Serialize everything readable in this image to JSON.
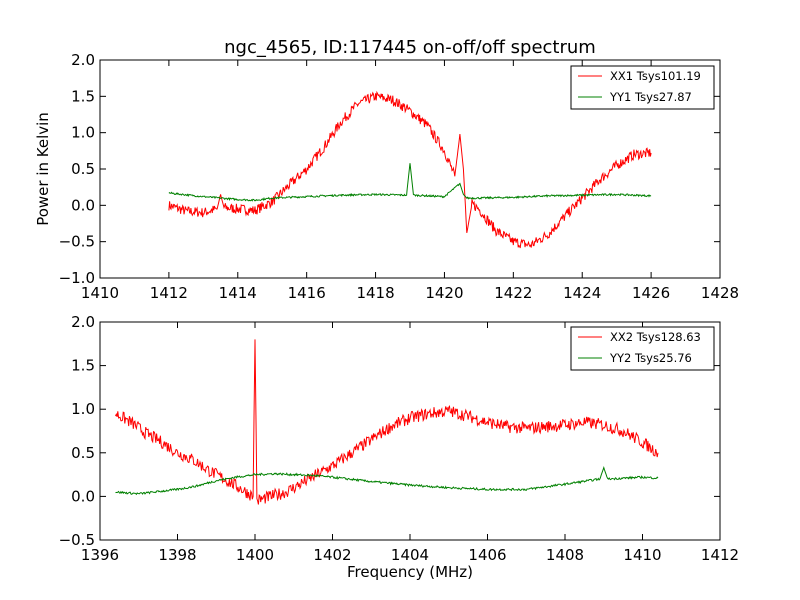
{
  "title": "ngc_4565, ID:117445 on-off/off spectrum",
  "chart_data": [
    {
      "type": "line",
      "ylabel": "Power in Kelvin",
      "xlabel": "",
      "xlim": [
        1410,
        1428
      ],
      "ylim": [
        -1.0,
        2.0
      ],
      "xticks": [
        1410,
        1412,
        1414,
        1416,
        1418,
        1420,
        1422,
        1424,
        1426,
        1428
      ],
      "yticks": [
        -1.0,
        -0.5,
        0.0,
        0.5,
        1.0,
        1.5,
        2.0
      ],
      "xtick_labels": [
        "1410",
        "1412",
        "1414",
        "1416",
        "1418",
        "1420",
        "1422",
        "1424",
        "1426",
        "1428"
      ],
      "ytick_labels": [
        "−1.0",
        "−0.5",
        "0.0",
        "0.5",
        "1.0",
        "1.5",
        "2.0"
      ],
      "grid": false,
      "legend_position": "top-right",
      "series": [
        {
          "name": "XX1 Tsys101.19",
          "color": "#ff0000",
          "x": [
            1412.0,
            1412.5,
            1413.0,
            1413.4,
            1413.5,
            1413.6,
            1414.0,
            1414.5,
            1415.0,
            1415.5,
            1416.0,
            1416.5,
            1417.0,
            1417.5,
            1418.0,
            1418.5,
            1419.0,
            1419.5,
            1420.0,
            1420.3,
            1420.45,
            1420.55,
            1420.65,
            1420.8,
            1421.0,
            1421.5,
            1422.0,
            1422.5,
            1423.0,
            1423.5,
            1424.0,
            1424.5,
            1425.0,
            1425.5,
            1426.0
          ],
          "y": [
            0.0,
            -0.08,
            -0.1,
            -0.05,
            0.15,
            -0.03,
            -0.05,
            -0.07,
            0.05,
            0.28,
            0.5,
            0.8,
            1.15,
            1.4,
            1.5,
            1.45,
            1.3,
            1.1,
            0.75,
            0.4,
            0.98,
            0.5,
            -0.38,
            0.02,
            -0.05,
            -0.35,
            -0.5,
            -0.55,
            -0.4,
            -0.15,
            0.1,
            0.35,
            0.55,
            0.7,
            0.72
          ]
        },
        {
          "name": "YY1 Tsys27.87",
          "color": "#008000",
          "x": [
            1412.0,
            1413.0,
            1414.0,
            1414.5,
            1415.0,
            1416.0,
            1417.0,
            1418.0,
            1418.9,
            1419.0,
            1419.1,
            1420.0,
            1420.45,
            1420.55,
            1420.65,
            1421.0,
            1422.0,
            1423.0,
            1424.0,
            1425.0,
            1426.0
          ],
          "y": [
            0.17,
            0.12,
            0.08,
            0.07,
            0.1,
            0.12,
            0.14,
            0.15,
            0.14,
            0.58,
            0.14,
            0.12,
            0.3,
            0.15,
            0.1,
            0.1,
            0.11,
            0.13,
            0.14,
            0.15,
            0.13
          ]
        }
      ]
    },
    {
      "type": "line",
      "ylabel": "",
      "xlabel": "Frequency (MHz)",
      "xlim": [
        1396,
        1412
      ],
      "ylim": [
        -0.5,
        2.0
      ],
      "xticks": [
        1396,
        1398,
        1400,
        1402,
        1404,
        1406,
        1408,
        1410,
        1412
      ],
      "yticks": [
        -0.5,
        0.0,
        0.5,
        1.0,
        1.5,
        2.0
      ],
      "xtick_labels": [
        "1396",
        "1398",
        "1400",
        "1402",
        "1404",
        "1406",
        "1408",
        "1410",
        "1412"
      ],
      "ytick_labels": [
        "−0.5",
        "0.0",
        "0.5",
        "1.0",
        "1.5",
        "2.0"
      ],
      "grid": false,
      "legend_position": "top-right",
      "series": [
        {
          "name": "XX2 Tsys128.63",
          "color": "#ff0000",
          "x": [
            1396.4,
            1396.8,
            1397.2,
            1397.6,
            1398.0,
            1398.4,
            1398.8,
            1399.2,
            1399.6,
            1399.95,
            1400.0,
            1400.05,
            1400.4,
            1400.8,
            1401.2,
            1401.6,
            1402.0,
            1402.5,
            1403.0,
            1403.5,
            1404.0,
            1404.5,
            1405.0,
            1405.5,
            1406.0,
            1406.5,
            1407.0,
            1407.5,
            1408.0,
            1408.5,
            1409.0,
            1409.5,
            1410.0,
            1410.4
          ],
          "y": [
            0.95,
            0.85,
            0.72,
            0.62,
            0.5,
            0.42,
            0.3,
            0.2,
            0.1,
            0.0,
            1.8,
            -0.05,
            0.0,
            0.05,
            0.15,
            0.25,
            0.35,
            0.5,
            0.65,
            0.8,
            0.9,
            0.95,
            0.98,
            0.92,
            0.85,
            0.8,
            0.78,
            0.8,
            0.82,
            0.85,
            0.82,
            0.75,
            0.62,
            0.5
          ]
        },
        {
          "name": "YY2 Tsys25.76",
          "color": "#008000",
          "x": [
            1396.4,
            1397.0,
            1398.0,
            1398.5,
            1399.0,
            1399.5,
            1400.0,
            1400.5,
            1401.0,
            1401.5,
            1402.0,
            1403.0,
            1404.0,
            1405.0,
            1406.0,
            1407.0,
            1408.0,
            1408.9,
            1409.0,
            1409.1,
            1410.0,
            1410.4
          ],
          "y": [
            0.05,
            0.03,
            0.08,
            0.12,
            0.18,
            0.22,
            0.25,
            0.26,
            0.25,
            0.24,
            0.22,
            0.17,
            0.13,
            0.1,
            0.08,
            0.08,
            0.14,
            0.2,
            0.33,
            0.2,
            0.22,
            0.21
          ]
        }
      ]
    }
  ]
}
